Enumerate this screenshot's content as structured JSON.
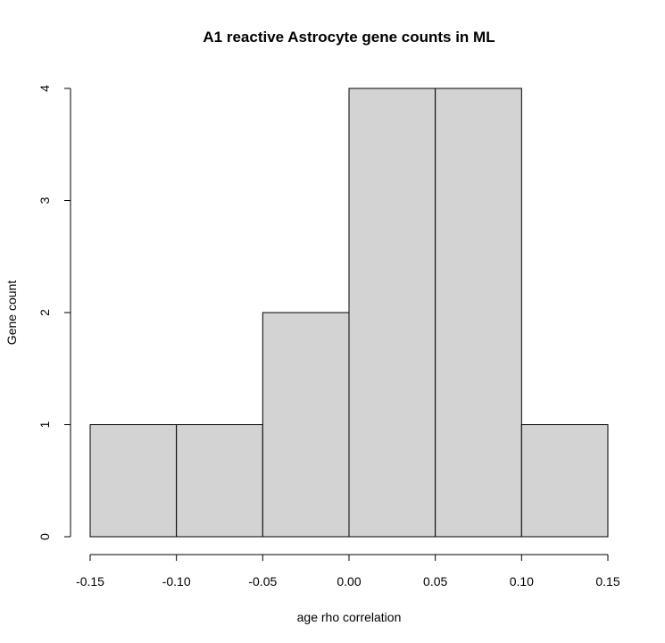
{
  "chart_data": {
    "type": "bar",
    "title": "A1 reactive Astrocyte gene counts in ML",
    "xlabel": "age rho correlation",
    "ylabel": "Gene count",
    "bins": [
      {
        "from": -0.15,
        "to": -0.1,
        "count": 1
      },
      {
        "from": -0.1,
        "to": -0.05,
        "count": 1
      },
      {
        "from": -0.05,
        "to": 0.0,
        "count": 2
      },
      {
        "from": 0.0,
        "to": 0.05,
        "count": 4
      },
      {
        "from": 0.05,
        "to": 0.1,
        "count": 4
      },
      {
        "from": 0.1,
        "to": 0.15,
        "count": 1
      }
    ],
    "xlim": [
      -0.15,
      0.15
    ],
    "ylim": [
      0,
      4
    ],
    "x_ticks": [
      "-0.15",
      "-0.10",
      "-0.05",
      "0.00",
      "0.05",
      "0.10",
      "0.15"
    ],
    "y_ticks": [
      "0",
      "1",
      "2",
      "3",
      "4"
    ],
    "bar_color": "#d3d3d3",
    "grid": false,
    "legend": "none"
  }
}
